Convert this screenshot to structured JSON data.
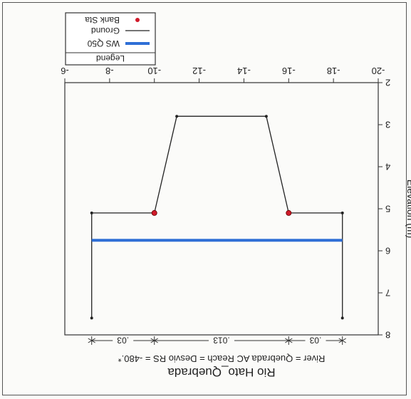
{
  "chart_data": {
    "type": "line",
    "title": "Rio Hato_Quebrada",
    "subtitle": "River = Quebrada AC    Reach = Desvio    RS = -480.*",
    "xlabel": "",
    "ylabel": "Elevation (m)",
    "orientation": "rotated 180 degrees",
    "xlim": [
      -20,
      -6
    ],
    "ylim": [
      2,
      8
    ],
    "x_ticks": [
      "-20",
      "-18",
      "-16",
      "-14",
      "-12",
      "-10",
      "-8",
      "-6"
    ],
    "y_ticks": [
      "2",
      "3",
      "4",
      "5",
      "6",
      "7",
      "8"
    ],
    "grid": false,
    "legend": {
      "title": "Legend",
      "position": "top-left",
      "entries": [
        "WS Q50",
        "Ground",
        "Bank Sta"
      ]
    },
    "series": [
      {
        "name": "Ground",
        "color": "#222222",
        "x": [
          -18.4,
          -18.4,
          -16.0,
          -15.0,
          -11.0,
          -10.0,
          -7.2,
          -7.2
        ],
        "y": [
          7.6,
          5.1,
          5.1,
          2.8,
          2.8,
          5.1,
          5.1,
          7.6
        ]
      },
      {
        "name": "WS Q50",
        "color": "#2f6fd6",
        "x": [
          -18.4,
          -7.2
        ],
        "y": [
          5.75,
          5.75
        ]
      },
      {
        "name": "Bank Sta",
        "color": "#d01a2a",
        "x": [
          -16.0,
          -10.0
        ],
        "y": [
          5.1,
          5.1
        ]
      }
    ],
    "manning_regions": [
      {
        "label": ".03",
        "x0": -18.4,
        "x1": -16.0
      },
      {
        "label": ".013",
        "x0": -16.0,
        "x1": -10.0
      },
      {
        "label": ".03",
        "x0": -10.0,
        "x1": -7.2
      }
    ]
  }
}
